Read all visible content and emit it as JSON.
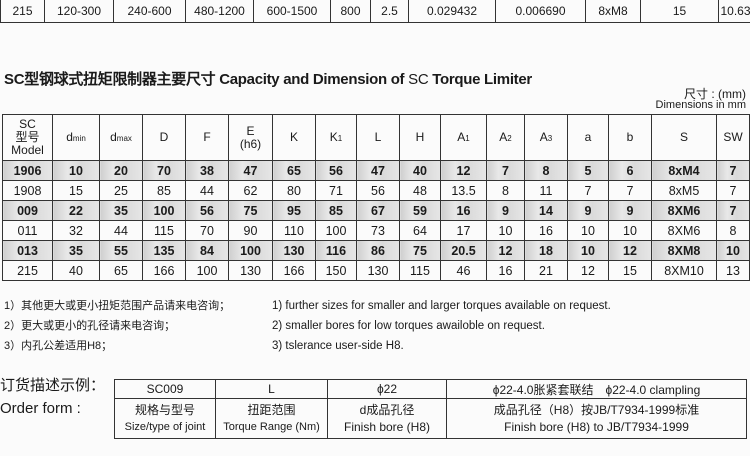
{
  "top_row": [
    "215",
    "120-300",
    "240-600",
    "480-1200",
    "600-1500",
    "800",
    "2.5",
    "0.029432",
    "0.006690",
    "8xM8",
    "15",
    "10.63"
  ],
  "title": {
    "cn": "SC型钢球式扭矩限制器主要尺寸",
    "en1": "Capacity and Dimension of",
    "en2": "SC",
    "en3": "Torque Limiter"
  },
  "unit": {
    "cn": "尺寸 : (mm)",
    "en": "Dimensions in mm"
  },
  "dim_table": {
    "headers": [
      "SC\n型号\nModel",
      "dmin",
      "dmax",
      "D",
      "F",
      "E\n(h6)",
      "K",
      "K1",
      "L",
      "H",
      "A1",
      "A2",
      "A3",
      "a",
      "b",
      "S",
      "SW"
    ],
    "rows": [
      [
        "1906",
        "10",
        "20",
        "70",
        "38",
        "47",
        "65",
        "56",
        "47",
        "40",
        "12",
        "7",
        "8",
        "5",
        "6",
        "8xM4",
        "7"
      ],
      [
        "1908",
        "15",
        "25",
        "85",
        "44",
        "62",
        "80",
        "71",
        "56",
        "48",
        "13.5",
        "8",
        "11",
        "7",
        "7",
        "8xM5",
        "7"
      ],
      [
        "009",
        "22",
        "35",
        "100",
        "56",
        "75",
        "95",
        "85",
        "67",
        "59",
        "16",
        "9",
        "14",
        "9",
        "9",
        "8XM6",
        "7"
      ],
      [
        "011",
        "32",
        "44",
        "115",
        "70",
        "90",
        "110",
        "100",
        "73",
        "64",
        "17",
        "10",
        "16",
        "10",
        "10",
        "8XM6",
        "8"
      ],
      [
        "013",
        "35",
        "55",
        "135",
        "84",
        "100",
        "130",
        "116",
        "86",
        "75",
        "20.5",
        "12",
        "18",
        "10",
        "12",
        "8XM8",
        "10"
      ],
      [
        "215",
        "40",
        "65",
        "166",
        "100",
        "130",
        "166",
        "150",
        "130",
        "115",
        "46",
        "16",
        "21",
        "12",
        "15",
        "8XM10",
        "13"
      ]
    ],
    "shaded_rows": [
      0,
      2,
      4
    ]
  },
  "notes_cn": [
    "1）其他更大或更小扭矩范围产品请来电咨询；",
    "2）更大或更小的孔径请来电咨询；",
    "3）内孔公差适用H8；"
  ],
  "notes_en": [
    "1) further sizes for smaller and larger torques available on request.",
    "2) smaller bores for low torques awailoble on request.",
    "3) tslerance user-side H8."
  ],
  "order": {
    "label_cn": "订货描述示例：",
    "label_en": "Order form :",
    "example": [
      "SC009",
      "L",
      "ϕ22",
      "ϕ22-4.0胀紧套联结　ϕ22-4.0 clampling"
    ],
    "desc_cn": [
      "规格与型号",
      "扭距范围",
      "d成品孔径",
      "成品孔径（H8）按JB/T7934-1999标准"
    ],
    "desc_en": [
      "Size/type of joint",
      "Torque Range (Nm)",
      "Finish bore (H8)",
      "Finish bore (H8) to JB/T7934-1999"
    ]
  }
}
